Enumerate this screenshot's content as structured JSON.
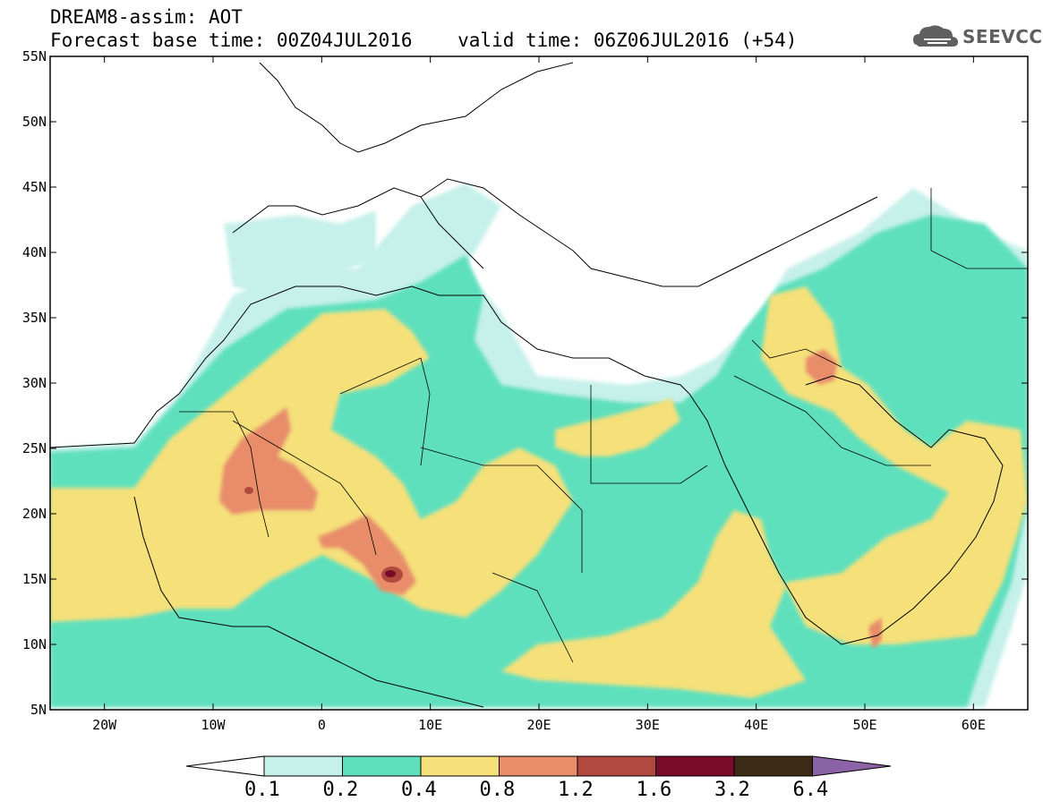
{
  "header": {
    "line1": "DREAM8-assim: AOT",
    "line2": "Forecast base time: 00Z04JUL2016    valid time: 06Z06JUL2016 (+54)"
  },
  "logo": {
    "text": "SEEVCCC",
    "icon": "cloud-icon"
  },
  "map": {
    "lon_range": [
      -25,
      65
    ],
    "lat_range": [
      5,
      55
    ],
    "lat_ticks": [
      "55N",
      "50N",
      "45N",
      "40N",
      "35N",
      "30N",
      "25N",
      "20N",
      "15N",
      "10N",
      "5N"
    ],
    "lon_ticks": [
      "20W",
      "10W",
      "0",
      "10E",
      "20E",
      "30E",
      "40E",
      "50E",
      "60E"
    ]
  },
  "colorbar": {
    "colors": [
      "#ffffff",
      "#c6f0ea",
      "#5fe0bd",
      "#f5e07a",
      "#e88c6a",
      "#b04a3e",
      "#7a0a2a",
      "#3d2a16",
      "#8a63a6"
    ],
    "labels": [
      "0.1",
      "0.2",
      "0.4",
      "0.8",
      "1.2",
      "1.6",
      "3.2",
      "6.4"
    ]
  }
}
